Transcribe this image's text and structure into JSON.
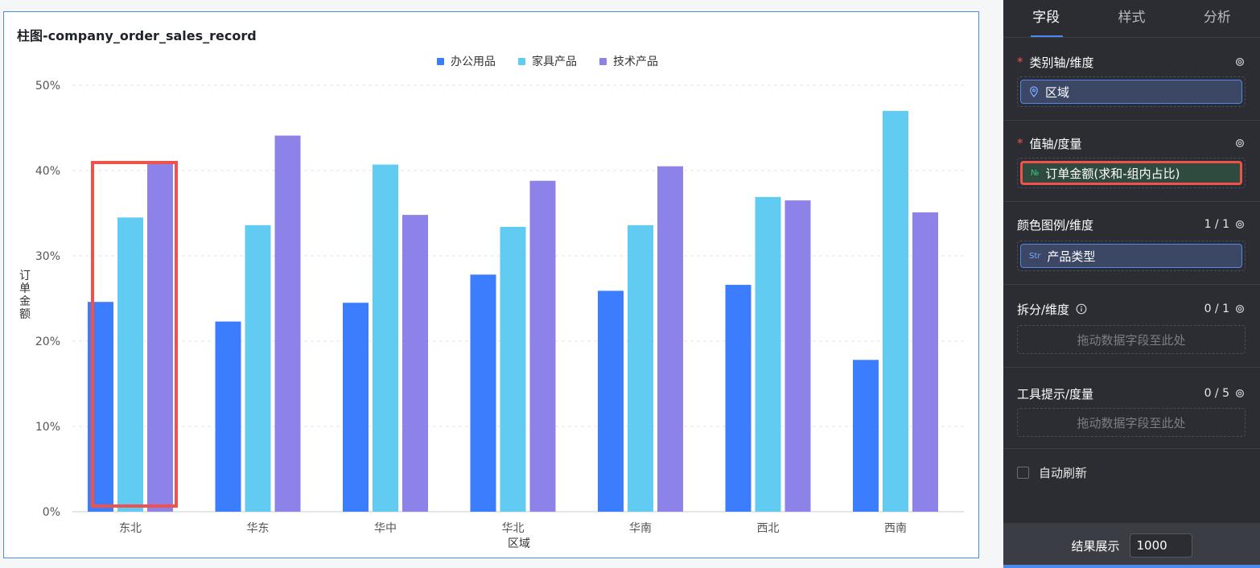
{
  "chart_title": "柱图-company_order_sales_record",
  "colors": {
    "office": "#3c7dfd",
    "furniture": "#62cbf2",
    "tech": "#8c82e8",
    "highlight": "#f0524b"
  },
  "chart_data": {
    "type": "bar",
    "title": "柱图-company_order_sales_record",
    "xlabel": "区域",
    "ylabel": "订单金额",
    "categories": [
      "东北",
      "华东",
      "华中",
      "华北",
      "华南",
      "西北",
      "西南"
    ],
    "yticks": [
      "0%",
      "10%",
      "20%",
      "30%",
      "40%",
      "50%"
    ],
    "ylim": [
      0,
      50
    ],
    "grid": true,
    "legend_position": "top",
    "series": [
      {
        "name": "办公用品",
        "color": "#3c7dfd",
        "values": [
          24.6,
          22.3,
          24.5,
          27.8,
          25.9,
          26.6,
          17.8
        ]
      },
      {
        "name": "家具产品",
        "color": "#62cbf2",
        "values": [
          34.5,
          33.6,
          40.7,
          33.4,
          33.6,
          36.9,
          47.0
        ]
      },
      {
        "name": "技术产品",
        "color": "#8c82e8",
        "values": [
          40.9,
          44.1,
          34.8,
          38.8,
          40.5,
          36.5,
          35.1
        ]
      }
    ]
  },
  "panel": {
    "tabs": [
      "字段",
      "样式",
      "分析"
    ],
    "category_axis": {
      "title": "类别轴/维度",
      "field": "区域"
    },
    "value_axis": {
      "title": "值轴/度量",
      "field": "订单金额(求和-组内占比)",
      "icon": "№"
    },
    "color_legend": {
      "title": "颜色图例/维度",
      "count": "1 / 1",
      "field": "产品类型",
      "icon": "Str"
    },
    "split": {
      "title": "拆分/维度",
      "count": "0 / 1",
      "placeholder": "拖动数据字段至此处"
    },
    "tooltip": {
      "title": "工具提示/度量",
      "count": "0 / 5",
      "placeholder": "拖动数据字段至此处"
    },
    "auto_refresh": "自动刷新",
    "result_label": "结果展示",
    "result_value": "1000"
  }
}
